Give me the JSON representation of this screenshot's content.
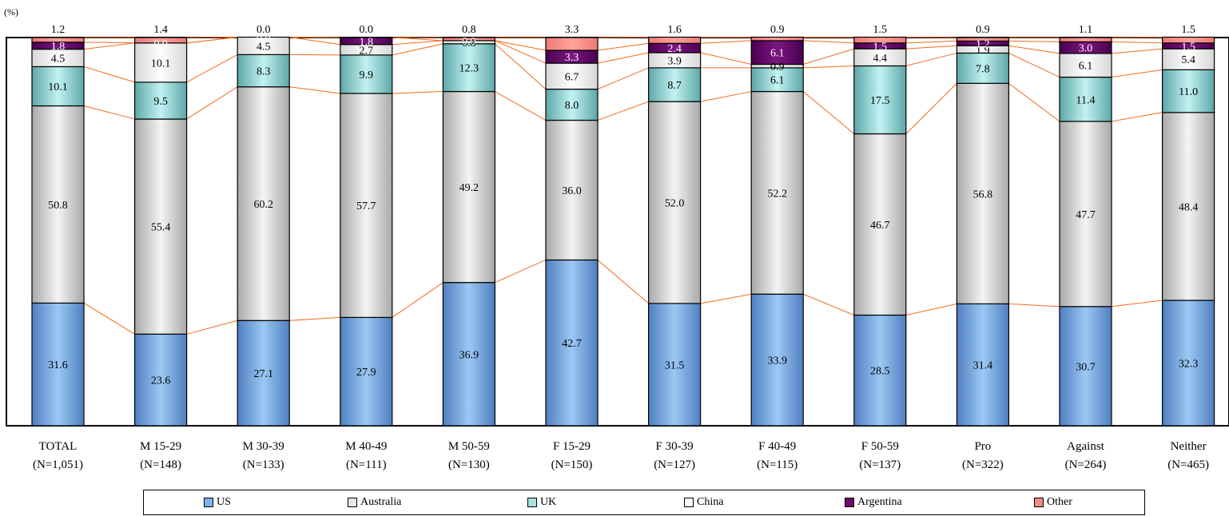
{
  "chart_data": {
    "type": "bar",
    "stacked": true,
    "percent": true,
    "unit_label": "(%)",
    "categories": [
      "TOTAL",
      "M 15-29",
      "M 30-39",
      "M 40-49",
      "M 50-59",
      "F 15-29",
      "F 30-39",
      "F 40-49",
      "F 50-59",
      "Pro",
      "Against",
      "Neither"
    ],
    "sample_sizes": [
      "(N=1,051)",
      "(N=148)",
      "(N=133)",
      "(N=111)",
      "(N=130)",
      "(N=150)",
      "(N=127)",
      "(N=115)",
      "(N=137)",
      "(N=322)",
      "(N=264)",
      "(N=465)"
    ],
    "series": [
      {
        "name": "US",
        "color": "#7fb2ec",
        "values": [
          31.6,
          23.6,
          27.1,
          27.9,
          36.9,
          42.7,
          31.5,
          33.9,
          28.5,
          31.4,
          30.7,
          32.3
        ]
      },
      {
        "name": "Australia",
        "color": "#e6e6e6",
        "values": [
          50.8,
          55.4,
          60.2,
          57.7,
          49.2,
          36.0,
          52.0,
          52.2,
          46.7,
          56.8,
          47.7,
          48.4
        ]
      },
      {
        "name": "UK",
        "color": "#a8e0e0",
        "values": [
          10.1,
          9.5,
          8.3,
          9.9,
          12.3,
          8.0,
          8.7,
          6.1,
          17.5,
          7.8,
          11.4,
          11.0
        ]
      },
      {
        "name": "China",
        "color": "#f8f8f8",
        "values": [
          4.5,
          10.1,
          4.5,
          2.7,
          0.8,
          6.7,
          3.9,
          0.9,
          4.4,
          1.9,
          6.1,
          5.4
        ]
      },
      {
        "name": "Argentina",
        "color": "#6e0a6e",
        "values": [
          1.8,
          0.0,
          0.0,
          1.8,
          0.0,
          3.3,
          2.4,
          6.1,
          1.5,
          1.2,
          3.0,
          1.5
        ]
      },
      {
        "name": "Other",
        "color": "#f58c82",
        "values": [
          1.2,
          1.4,
          0.0,
          0.0,
          0.8,
          3.3,
          1.6,
          0.9,
          1.5,
          0.9,
          1.1,
          1.5
        ]
      }
    ],
    "ylim": [
      0,
      100
    ],
    "legend_position": "bottom",
    "connector_color": "#f26c1c"
  }
}
